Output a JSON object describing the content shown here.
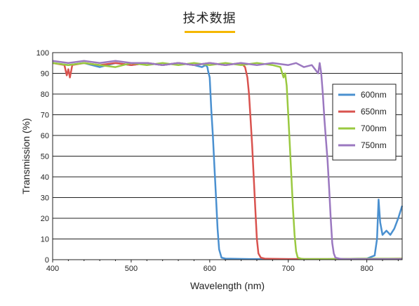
{
  "page": {
    "title": "技术数据",
    "accent_color": "#f5b800"
  },
  "chart_data": {
    "type": "line",
    "xlabel": "Wavelength (nm)",
    "ylabel": "Transmission (%)",
    "xlim": [
      400,
      845
    ],
    "ylim": [
      0,
      100
    ],
    "xticks": [
      400,
      500,
      600,
      700,
      800
    ],
    "yticks": [
      0,
      10,
      20,
      30,
      40,
      50,
      60,
      70,
      80,
      90,
      100
    ],
    "grid": "horizontal",
    "legend_position": "right",
    "series": [
      {
        "name": "600nm",
        "color": "#4a90d0",
        "x": [
          400,
          420,
          440,
          460,
          480,
          500,
          520,
          540,
          560,
          580,
          590,
          595,
          597,
          598,
          600,
          602,
          604,
          606,
          608,
          610,
          612,
          615,
          620,
          650,
          700,
          750,
          800,
          810,
          813,
          815,
          817,
          820,
          825,
          830,
          835,
          840,
          845
        ],
        "y": [
          95,
          94,
          95,
          93,
          95,
          94,
          95,
          94,
          95,
          94,
          93,
          94,
          93,
          91,
          88,
          72,
          60,
          45,
          30,
          15,
          5,
          1,
          0.5,
          0.3,
          0.3,
          0.3,
          0.5,
          2,
          10,
          29,
          18,
          12,
          14,
          12,
          15,
          20,
          26
        ]
      },
      {
        "name": "650nm",
        "color": "#d9534f",
        "x": [
          400,
          415,
          418,
          420,
          422,
          425,
          440,
          460,
          480,
          500,
          520,
          540,
          560,
          580,
          600,
          620,
          640,
          645,
          648,
          650,
          652,
          654,
          656,
          658,
          660,
          662,
          665,
          670,
          700,
          750,
          800,
          845
        ],
        "y": [
          95,
          94,
          89,
          92,
          88,
          94,
          95,
          94,
          95,
          94,
          95,
          94,
          95,
          94,
          95,
          94,
          95,
          93,
          88,
          80,
          68,
          55,
          40,
          25,
          10,
          3,
          1,
          0.5,
          0.3,
          0.3,
          0.3,
          0.5
        ]
      },
      {
        "name": "700nm",
        "color": "#9ac940",
        "x": [
          400,
          420,
          440,
          460,
          480,
          500,
          520,
          540,
          560,
          580,
          600,
          620,
          640,
          660,
          680,
          690,
          694,
          696,
          698,
          700,
          702,
          704,
          706,
          708,
          710,
          712,
          716,
          720,
          750,
          800,
          845
        ],
        "y": [
          95,
          94,
          95,
          94,
          93,
          95,
          94,
          95,
          94,
          95,
          94,
          95,
          94,
          95,
          94,
          93,
          88,
          90,
          84,
          70,
          55,
          40,
          25,
          12,
          4,
          1,
          0.5,
          0.3,
          0.3,
          0.5,
          0.5
        ]
      },
      {
        "name": "750nm",
        "color": "#9b78c0",
        "x": [
          400,
          420,
          440,
          460,
          480,
          500,
          520,
          540,
          560,
          580,
          600,
          620,
          640,
          660,
          680,
          700,
          710,
          720,
          730,
          738,
          740,
          742,
          744,
          746,
          748,
          750,
          752,
          754,
          756,
          758,
          760,
          765,
          770,
          800,
          845
        ],
        "y": [
          96,
          95,
          96,
          95,
          96,
          95,
          95,
          94,
          95,
          94,
          95,
          94,
          95,
          94,
          95,
          94,
          95,
          93,
          94,
          90,
          95,
          90,
          80,
          68,
          58,
          48,
          35,
          20,
          8,
          3,
          1,
          0.5,
          0.3,
          0.3,
          0.3
        ]
      }
    ]
  }
}
